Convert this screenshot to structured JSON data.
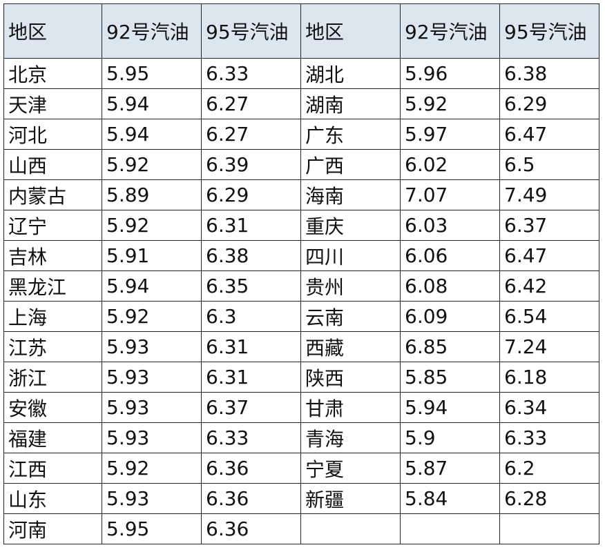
{
  "table": {
    "header": [
      "地区",
      "92号汽油",
      "95号汽油",
      "地区",
      "92号汽油",
      "95号汽油"
    ],
    "rows": [
      [
        "北京",
        "5.95",
        "6.33",
        "湖北",
        "5.96",
        "6.38"
      ],
      [
        "天津",
        "5.94",
        "6.27",
        "湖南",
        "5.92",
        "6.29"
      ],
      [
        "河北",
        "5.94",
        "6.27",
        "广东",
        "5.97",
        "6.47"
      ],
      [
        "山西",
        "5.92",
        "6.39",
        "广西",
        "6.02",
        "6.5"
      ],
      [
        "内蒙古",
        "5.89",
        "6.29",
        "海南",
        "7.07",
        "7.49"
      ],
      [
        "辽宁",
        "5.92",
        "6.31",
        "重庆",
        "6.03",
        "6.37"
      ],
      [
        "吉林",
        "5.91",
        "6.38",
        "四川",
        "6.06",
        "6.47"
      ],
      [
        "黑龙江",
        "5.94",
        "6.35",
        "贵州",
        "6.08",
        "6.42"
      ],
      [
        "上海",
        "5.92",
        "6.3",
        "云南",
        "6.09",
        "6.54"
      ],
      [
        "江苏",
        "5.93",
        "6.31",
        "西藏",
        "6.85",
        "7.24"
      ],
      [
        "浙江",
        "5.93",
        "6.31",
        "陕西",
        "5.85",
        "6.18"
      ],
      [
        "安徽",
        "5.93",
        "6.37",
        "甘肃",
        "5.94",
        "6.34"
      ],
      [
        "福建",
        "5.93",
        "6.33",
        "青海",
        "5.9",
        "6.33"
      ],
      [
        "江西",
        "5.92",
        "6.36",
        "宁夏",
        "5.87",
        "6.2"
      ],
      [
        "山东",
        "5.93",
        "6.36",
        "新疆",
        "5.84",
        "6.28"
      ],
      [
        "河南",
        "5.95",
        "6.36"
      ]
    ]
  }
}
